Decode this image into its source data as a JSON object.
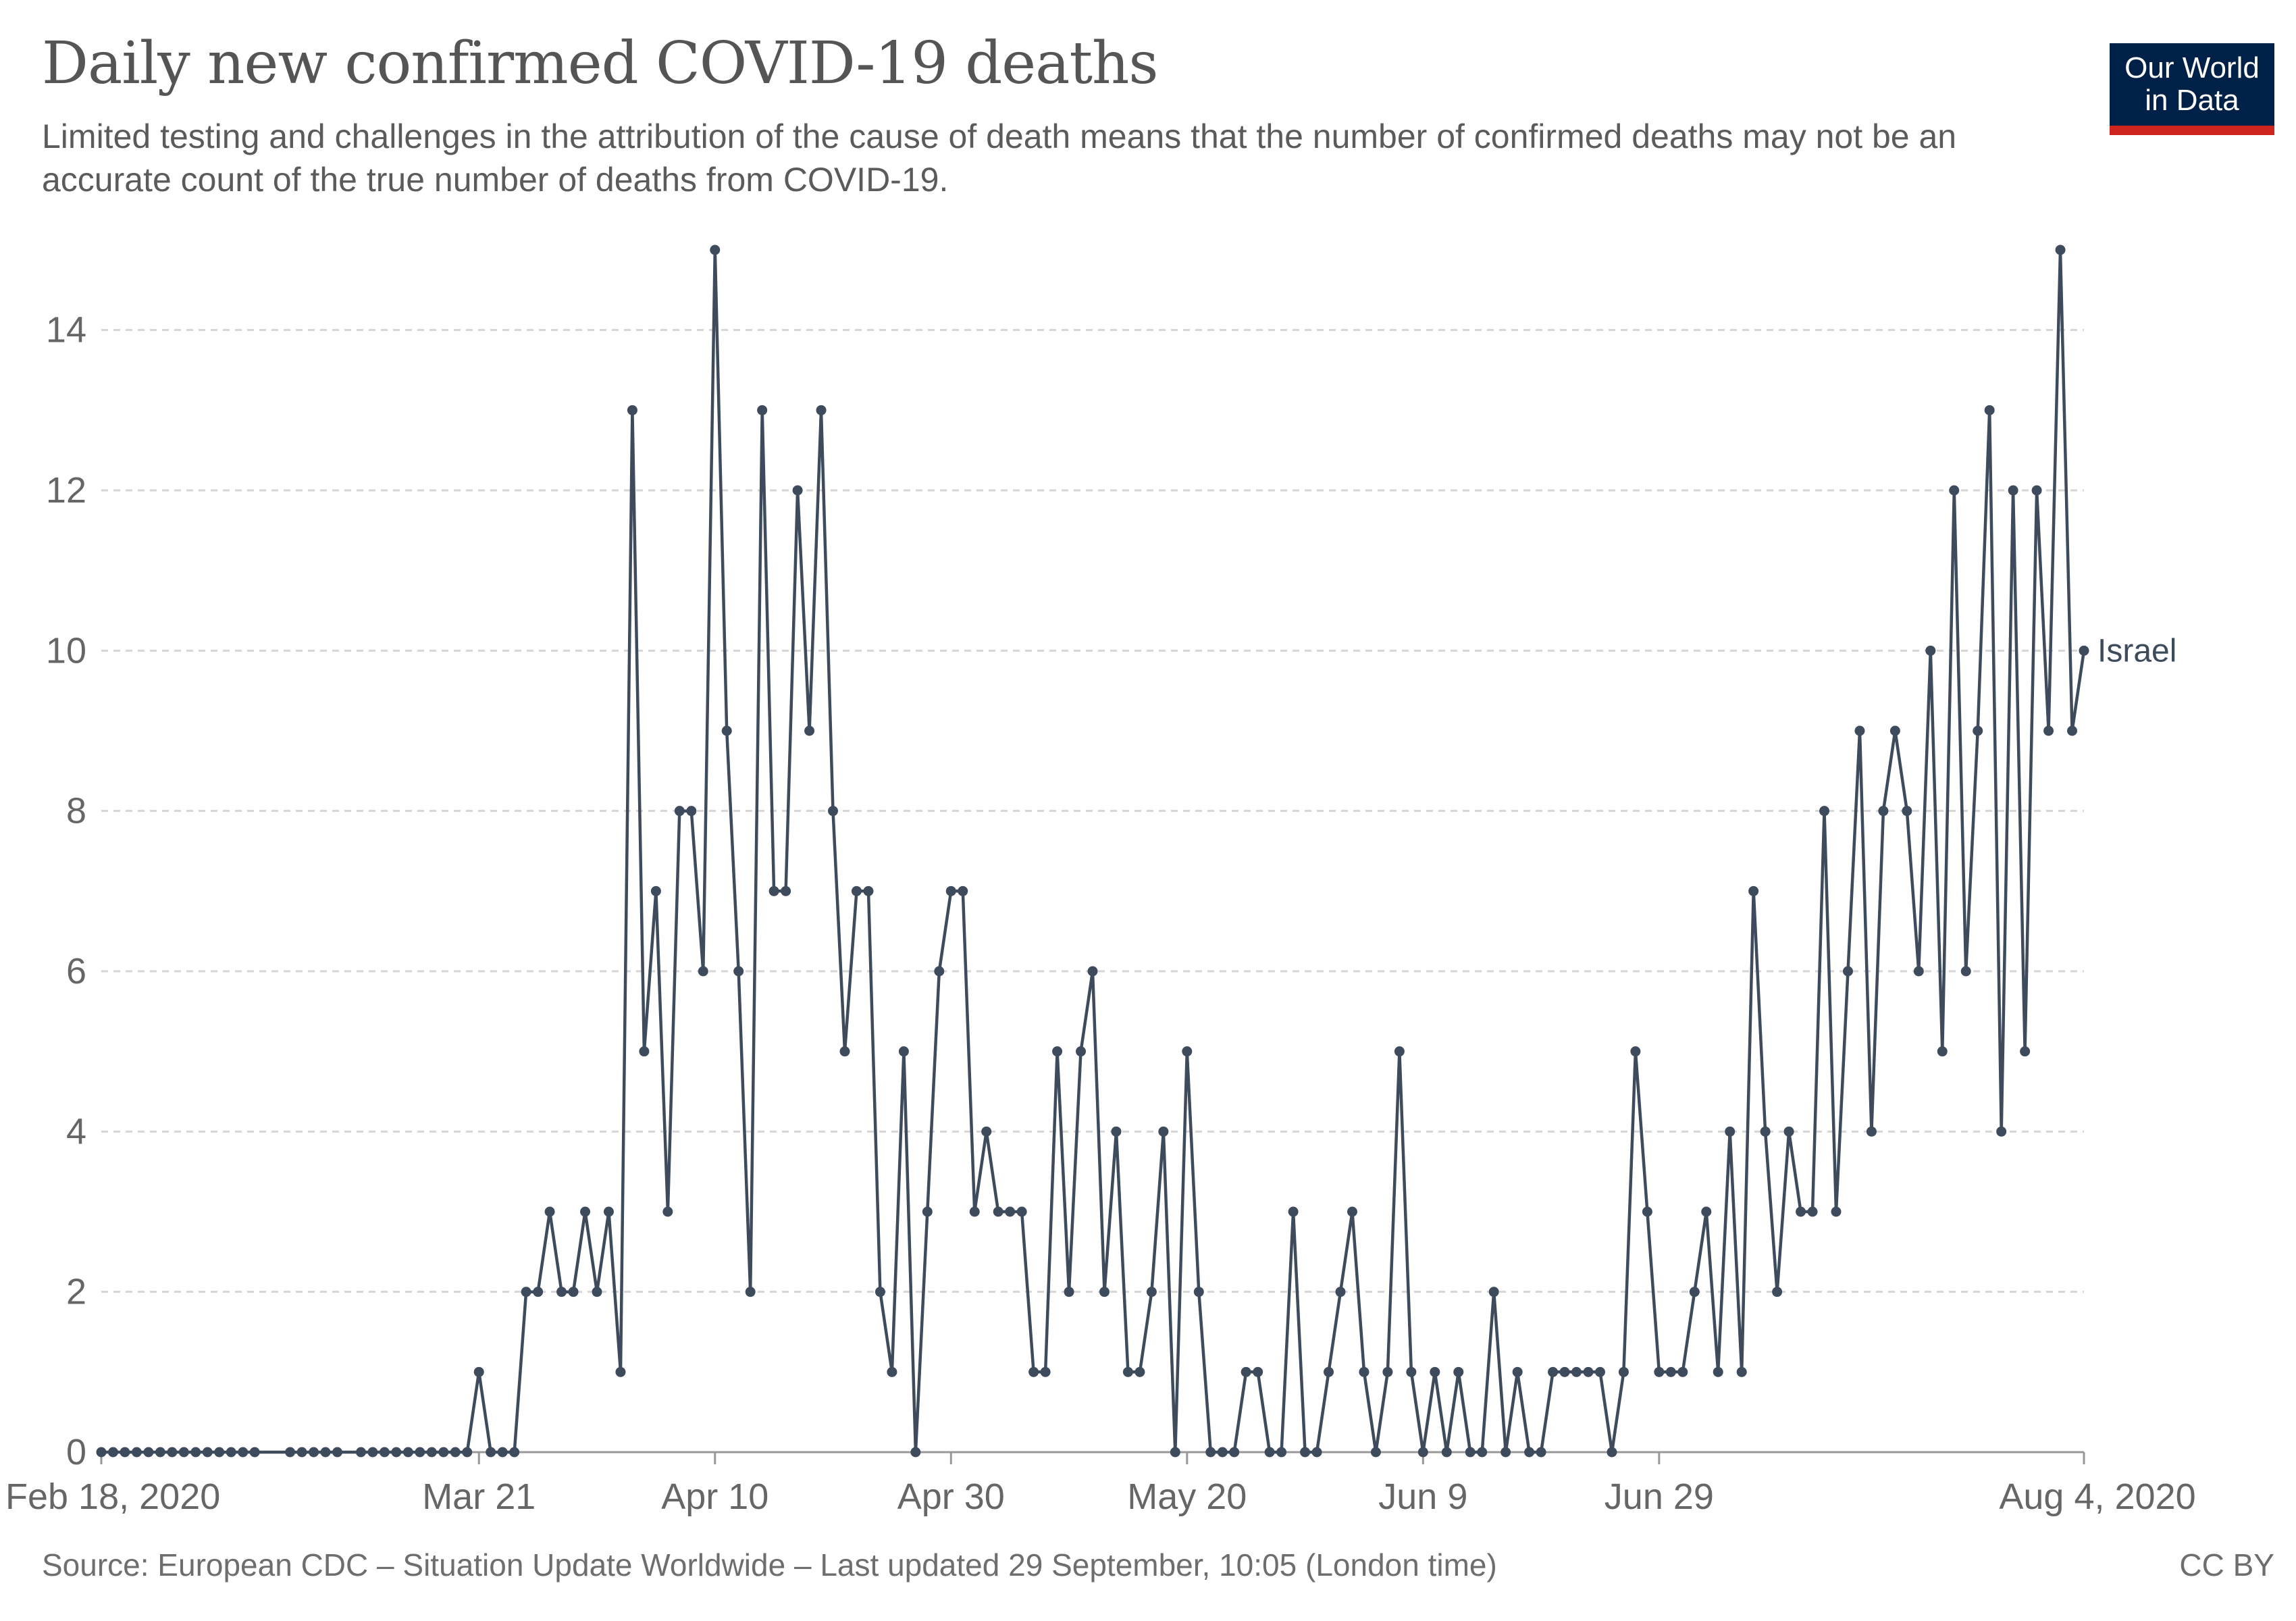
{
  "header": {
    "title": "Daily new confirmed COVID-19 deaths",
    "subtitle": "Limited testing and challenges in the attribution of the cause of death means that the number of confirmed deaths may not be an accurate count of the true number of deaths from COVID-19."
  },
  "logo": {
    "line1": "Our World",
    "line2": "in Data",
    "bg_color": "#002147",
    "accent_color": "#ce261e"
  },
  "footer": {
    "source": "Source: European CDC – Situation Update Worldwide – Last updated 29 September, 10:05 (London time)",
    "license": "CC BY"
  },
  "chart_data": {
    "type": "line",
    "title": "Daily new confirmed COVID-19 deaths",
    "xlabel": "",
    "ylabel": "",
    "x_start_date": "2020-02-18",
    "x_end_date": "2020-08-04",
    "ylim": [
      0,
      15
    ],
    "grid": true,
    "y_ticks": [
      "0",
      "2",
      "4",
      "6",
      "8",
      "10",
      "12",
      "14"
    ],
    "x_ticks": [
      {
        "date": "2020-02-18",
        "label": "Feb 18, 2020"
      },
      {
        "date": "2020-03-21",
        "label": "Mar 21"
      },
      {
        "date": "2020-04-10",
        "label": "Apr 10"
      },
      {
        "date": "2020-04-30",
        "label": "Apr 30"
      },
      {
        "date": "2020-05-20",
        "label": "May 20"
      },
      {
        "date": "2020-06-09",
        "label": "Jun 9"
      },
      {
        "date": "2020-06-29",
        "label": "Jun 29"
      },
      {
        "date": "2020-08-04",
        "label": "Aug 4, 2020"
      }
    ],
    "series": [
      {
        "name": "Israel",
        "color": "#3d4b5c",
        "points": [
          [
            "2020-02-18",
            0
          ],
          [
            "2020-02-19",
            0
          ],
          [
            "2020-02-20",
            0
          ],
          [
            "2020-02-21",
            0
          ],
          [
            "2020-02-22",
            0
          ],
          [
            "2020-02-23",
            0
          ],
          [
            "2020-02-24",
            0
          ],
          [
            "2020-02-25",
            0
          ],
          [
            "2020-02-26",
            0
          ],
          [
            "2020-02-27",
            0
          ],
          [
            "2020-02-28",
            0
          ],
          [
            "2020-02-29",
            0
          ],
          [
            "2020-03-01",
            0
          ],
          [
            "2020-03-02",
            0
          ],
          [
            "2020-03-05",
            0
          ],
          [
            "2020-03-06",
            0
          ],
          [
            "2020-03-07",
            0
          ],
          [
            "2020-03-08",
            0
          ],
          [
            "2020-03-09",
            0
          ],
          [
            "2020-03-11",
            0
          ],
          [
            "2020-03-12",
            0
          ],
          [
            "2020-03-13",
            0
          ],
          [
            "2020-03-14",
            0
          ],
          [
            "2020-03-15",
            0
          ],
          [
            "2020-03-16",
            0
          ],
          [
            "2020-03-17",
            0
          ],
          [
            "2020-03-18",
            0
          ],
          [
            "2020-03-19",
            0
          ],
          [
            "2020-03-20",
            0
          ],
          [
            "2020-03-21",
            1
          ],
          [
            "2020-03-22",
            0
          ],
          [
            "2020-03-23",
            0
          ],
          [
            "2020-03-24",
            0
          ],
          [
            "2020-03-25",
            2
          ],
          [
            "2020-03-26",
            2
          ],
          [
            "2020-03-27",
            3
          ],
          [
            "2020-03-28",
            2
          ],
          [
            "2020-03-29",
            2
          ],
          [
            "2020-03-30",
            3
          ],
          [
            "2020-03-31",
            2
          ],
          [
            "2020-04-01",
            3
          ],
          [
            "2020-04-02",
            1
          ],
          [
            "2020-04-03",
            13
          ],
          [
            "2020-04-04",
            5
          ],
          [
            "2020-04-05",
            7
          ],
          [
            "2020-04-06",
            3
          ],
          [
            "2020-04-07",
            8
          ],
          [
            "2020-04-08",
            8
          ],
          [
            "2020-04-09",
            6
          ],
          [
            "2020-04-10",
            15
          ],
          [
            "2020-04-11",
            9
          ],
          [
            "2020-04-12",
            6
          ],
          [
            "2020-04-13",
            2
          ],
          [
            "2020-04-14",
            13
          ],
          [
            "2020-04-15",
            7
          ],
          [
            "2020-04-16",
            7
          ],
          [
            "2020-04-17",
            12
          ],
          [
            "2020-04-18",
            9
          ],
          [
            "2020-04-19",
            13
          ],
          [
            "2020-04-20",
            8
          ],
          [
            "2020-04-21",
            5
          ],
          [
            "2020-04-22",
            7
          ],
          [
            "2020-04-23",
            7
          ],
          [
            "2020-04-24",
            2
          ],
          [
            "2020-04-25",
            1
          ],
          [
            "2020-04-26",
            5
          ],
          [
            "2020-04-27",
            0
          ],
          [
            "2020-04-28",
            3
          ],
          [
            "2020-04-29",
            6
          ],
          [
            "2020-04-30",
            7
          ],
          [
            "2020-05-01",
            7
          ],
          [
            "2020-05-02",
            3
          ],
          [
            "2020-05-03",
            4
          ],
          [
            "2020-05-04",
            3
          ],
          [
            "2020-05-05",
            3
          ],
          [
            "2020-05-06",
            3
          ],
          [
            "2020-05-07",
            1
          ],
          [
            "2020-05-08",
            1
          ],
          [
            "2020-05-09",
            5
          ],
          [
            "2020-05-10",
            2
          ],
          [
            "2020-05-11",
            5
          ],
          [
            "2020-05-12",
            6
          ],
          [
            "2020-05-13",
            2
          ],
          [
            "2020-05-14",
            4
          ],
          [
            "2020-05-15",
            1
          ],
          [
            "2020-05-16",
            1
          ],
          [
            "2020-05-17",
            2
          ],
          [
            "2020-05-18",
            4
          ],
          [
            "2020-05-19",
            0
          ],
          [
            "2020-05-20",
            5
          ],
          [
            "2020-05-21",
            2
          ],
          [
            "2020-05-22",
            0
          ],
          [
            "2020-05-23",
            0
          ],
          [
            "2020-05-24",
            0
          ],
          [
            "2020-05-25",
            1
          ],
          [
            "2020-05-26",
            1
          ],
          [
            "2020-05-27",
            0
          ],
          [
            "2020-05-28",
            0
          ],
          [
            "2020-05-29",
            3
          ],
          [
            "2020-05-30",
            0
          ],
          [
            "2020-05-31",
            0
          ],
          [
            "2020-06-01",
            1
          ],
          [
            "2020-06-02",
            2
          ],
          [
            "2020-06-03",
            3
          ],
          [
            "2020-06-04",
            1
          ],
          [
            "2020-06-05",
            0
          ],
          [
            "2020-06-06",
            1
          ],
          [
            "2020-06-07",
            5
          ],
          [
            "2020-06-08",
            1
          ],
          [
            "2020-06-09",
            0
          ],
          [
            "2020-06-10",
            1
          ],
          [
            "2020-06-11",
            0
          ],
          [
            "2020-06-12",
            1
          ],
          [
            "2020-06-13",
            0
          ],
          [
            "2020-06-14",
            0
          ],
          [
            "2020-06-15",
            2
          ],
          [
            "2020-06-16",
            0
          ],
          [
            "2020-06-17",
            1
          ],
          [
            "2020-06-18",
            0
          ],
          [
            "2020-06-19",
            0
          ],
          [
            "2020-06-20",
            1
          ],
          [
            "2020-06-21",
            1
          ],
          [
            "2020-06-22",
            1
          ],
          [
            "2020-06-23",
            1
          ],
          [
            "2020-06-24",
            1
          ],
          [
            "2020-06-25",
            0
          ],
          [
            "2020-06-26",
            1
          ],
          [
            "2020-06-27",
            5
          ],
          [
            "2020-06-28",
            3
          ],
          [
            "2020-06-29",
            1
          ],
          [
            "2020-06-30",
            1
          ],
          [
            "2020-07-01",
            1
          ],
          [
            "2020-07-02",
            2
          ],
          [
            "2020-07-03",
            3
          ],
          [
            "2020-07-04",
            1
          ],
          [
            "2020-07-05",
            4
          ],
          [
            "2020-07-06",
            1
          ],
          [
            "2020-07-07",
            7
          ],
          [
            "2020-07-08",
            4
          ],
          [
            "2020-07-09",
            2
          ],
          [
            "2020-07-10",
            4
          ],
          [
            "2020-07-11",
            3
          ],
          [
            "2020-07-12",
            3
          ],
          [
            "2020-07-13",
            8
          ],
          [
            "2020-07-14",
            3
          ],
          [
            "2020-07-15",
            6
          ],
          [
            "2020-07-16",
            9
          ],
          [
            "2020-07-17",
            4
          ],
          [
            "2020-07-18",
            8
          ],
          [
            "2020-07-19",
            9
          ],
          [
            "2020-07-20",
            8
          ],
          [
            "2020-07-21",
            6
          ],
          [
            "2020-07-22",
            10
          ],
          [
            "2020-07-23",
            5
          ],
          [
            "2020-07-24",
            12
          ],
          [
            "2020-07-25",
            6
          ],
          [
            "2020-07-26",
            9
          ],
          [
            "2020-07-27",
            13
          ],
          [
            "2020-07-28",
            4
          ],
          [
            "2020-07-29",
            12
          ],
          [
            "2020-07-30",
            5
          ],
          [
            "2020-07-31",
            12
          ],
          [
            "2020-08-01",
            9
          ],
          [
            "2020-08-02",
            15
          ],
          [
            "2020-08-03",
            9
          ],
          [
            "2020-08-04",
            10
          ]
        ]
      }
    ]
  }
}
